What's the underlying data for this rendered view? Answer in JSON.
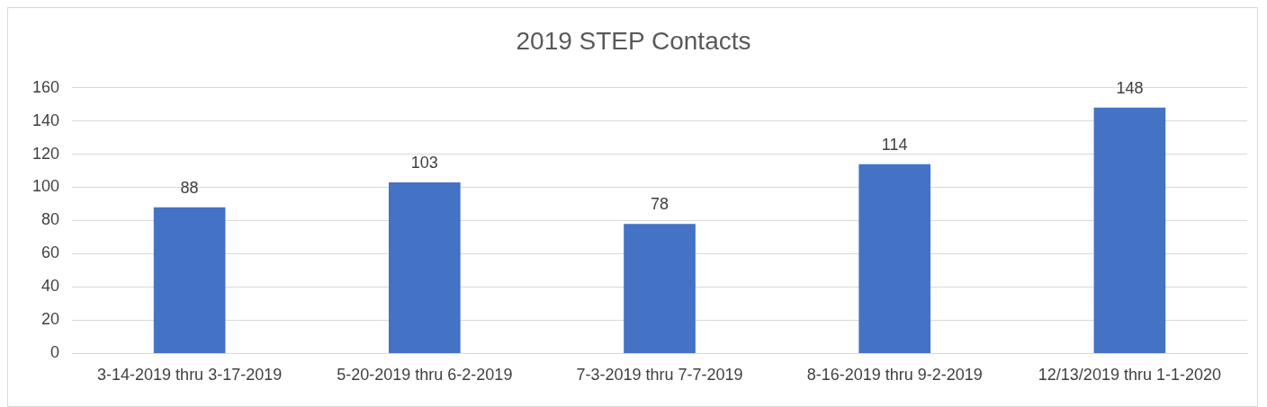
{
  "chart_data": {
    "type": "bar",
    "title": "2019 STEP Contacts",
    "categories": [
      "3-14-2019 thru 3-17-2019",
      "5-20-2019 thru 6-2-2019",
      "7-3-2019 thru 7-7-2019",
      "8-16-2019 thru 9-2-2019",
      "12/13/2019 thru 1-1-2020"
    ],
    "values": [
      88,
      103,
      78,
      114,
      148
    ],
    "color": "#4472c4",
    "ylim": [
      0,
      160
    ],
    "yticks": [
      0,
      20,
      40,
      60,
      80,
      100,
      120,
      140,
      160
    ],
    "grid": "y",
    "data_labels": true
  }
}
